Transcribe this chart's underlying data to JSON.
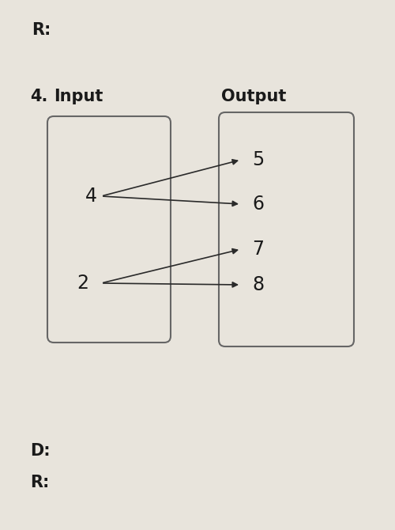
{
  "title_number": "4.",
  "label_input": "Input",
  "label_output": "Output",
  "input_values": [
    "4",
    "2"
  ],
  "output_values": [
    "5",
    "6",
    "7",
    "8"
  ],
  "arrows": [
    [
      0,
      0
    ],
    [
      0,
      1
    ],
    [
      1,
      2
    ],
    [
      1,
      3
    ]
  ],
  "top_label": "R:",
  "bottom_labels": [
    "D:",
    "R:"
  ],
  "bg_color": "#e8e4dc",
  "text_color": "#1a1a1a",
  "arrow_color": "#2a2a2a",
  "box_edge_color": "#666666"
}
